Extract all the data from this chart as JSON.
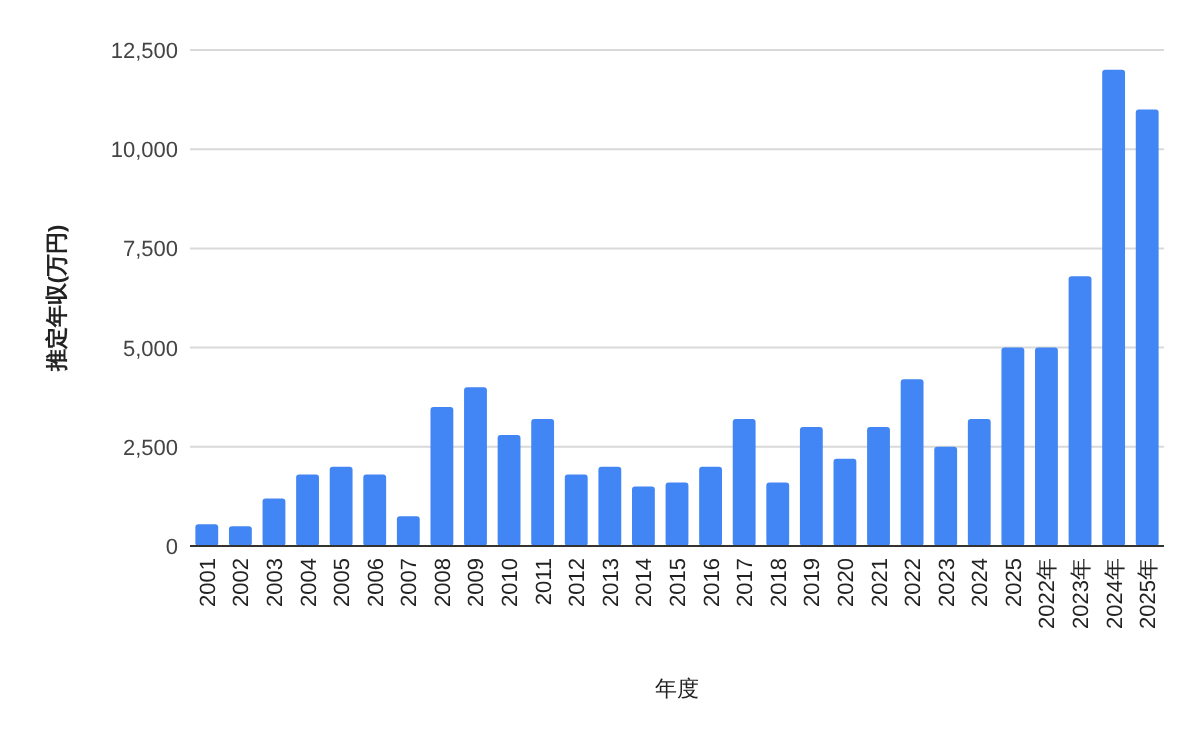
{
  "chart_data": {
    "type": "bar",
    "xlabel": "年度",
    "ylabel": "推定年収(万円)",
    "categories": [
      "2001",
      "2002",
      "2003",
      "2004",
      "2005",
      "2006",
      "2007",
      "2008",
      "2009",
      "2010",
      "2011",
      "2012",
      "2013",
      "2014",
      "2015",
      "2016",
      "2017",
      "2018",
      "2019",
      "2020",
      "2021",
      "2022",
      "2023",
      "2024",
      "2025",
      "2022年",
      "2023年",
      "2024年",
      "2025年"
    ],
    "values": [
      550,
      500,
      1200,
      1800,
      2000,
      1800,
      750,
      3500,
      4000,
      2800,
      3200,
      1800,
      2000,
      1500,
      1600,
      2000,
      3200,
      1600,
      3000,
      2200,
      3000,
      4200,
      2500,
      3200,
      5000,
      5000,
      6800,
      12000,
      11000
    ],
    "color": "#4285f4",
    "ylim": [
      0,
      12500
    ],
    "yticks": [
      {
        "value": 0,
        "label": "0"
      },
      {
        "value": 2500,
        "label": "2,500"
      },
      {
        "value": 5000,
        "label": "5,000"
      },
      {
        "value": 7500,
        "label": "7,500"
      },
      {
        "value": 10000,
        "label": "10,000"
      },
      {
        "value": 12500,
        "label": "12,500"
      }
    ],
    "grid": "y"
  }
}
